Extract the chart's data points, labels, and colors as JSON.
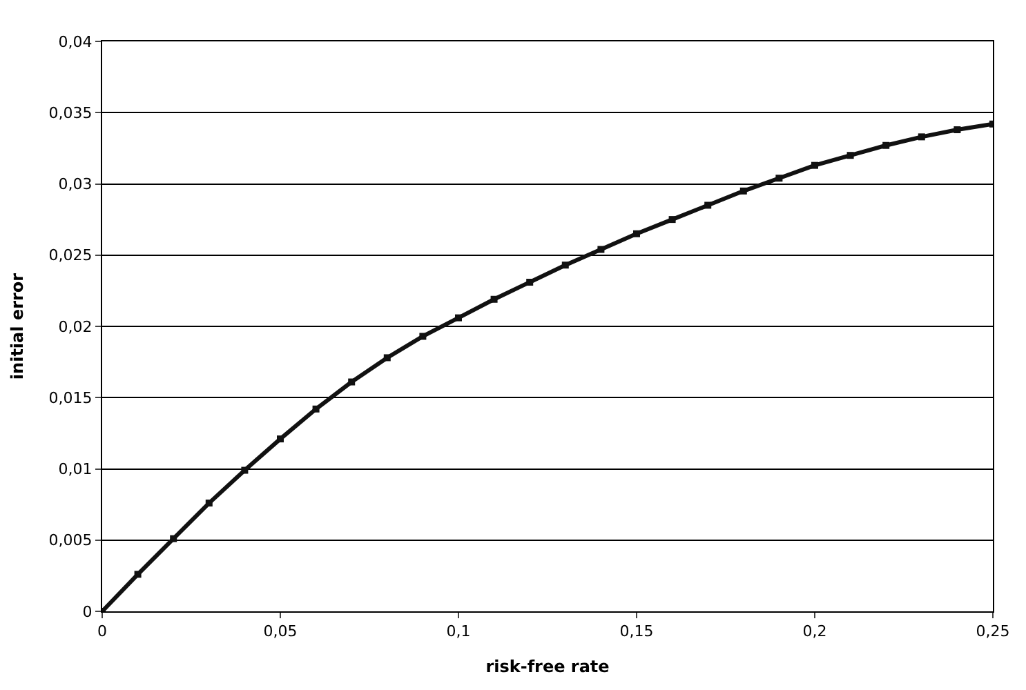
{
  "chart_data": {
    "type": "line",
    "xlabel": "risk-free rate",
    "ylabel": "initial error",
    "x": [
      0,
      0.01,
      0.02,
      0.03,
      0.04,
      0.05,
      0.06,
      0.07,
      0.08,
      0.09,
      0.1,
      0.11,
      0.12,
      0.13,
      0.14,
      0.15,
      0.16,
      0.17,
      0.18,
      0.19,
      0.2,
      0.21,
      0.22,
      0.23,
      0.24,
      0.25
    ],
    "series": [
      {
        "color": "#111111",
        "values": [
          0,
          0.0026,
          0.0051,
          0.0076,
          0.0099,
          0.0121,
          0.0142,
          0.0161,
          0.0178,
          0.0193,
          0.0206,
          0.0219,
          0.0231,
          0.0243,
          0.0254,
          0.0265,
          0.0275,
          0.0285,
          0.0295,
          0.0304,
          0.0313,
          0.032,
          0.0327,
          0.0333,
          0.0338,
          0.0342
        ]
      }
    ],
    "xlim": [
      0,
      0.25
    ],
    "xticks": [
      0,
      {
        "value": 0.05,
        "label": "0,05"
      },
      {
        "value": 0.1,
        "label": "0,1"
      },
      {
        "value": 0.15,
        "label": "0,15"
      },
      {
        "value": 0.2,
        "label": "0,2"
      },
      {
        "value": 0.25,
        "label": "0,25"
      }
    ],
    "ylim": [
      0,
      0.04
    ],
    "yticks": [
      0,
      {
        "value": 0.005,
        "label": "0,005"
      },
      {
        "value": 0.01,
        "label": "0,01"
      },
      {
        "value": 0.015,
        "label": "0,015"
      },
      {
        "value": 0.02,
        "label": "0,02"
      },
      {
        "value": 0.025,
        "label": "0,025"
      },
      {
        "value": 0.03,
        "label": "0,03"
      },
      {
        "value": 0.035,
        "label": "0,035"
      },
      {
        "value": 0.04,
        "label": "0,04"
      }
    ],
    "grid": "y",
    "marker": "square",
    "line_style": "solid"
  }
}
